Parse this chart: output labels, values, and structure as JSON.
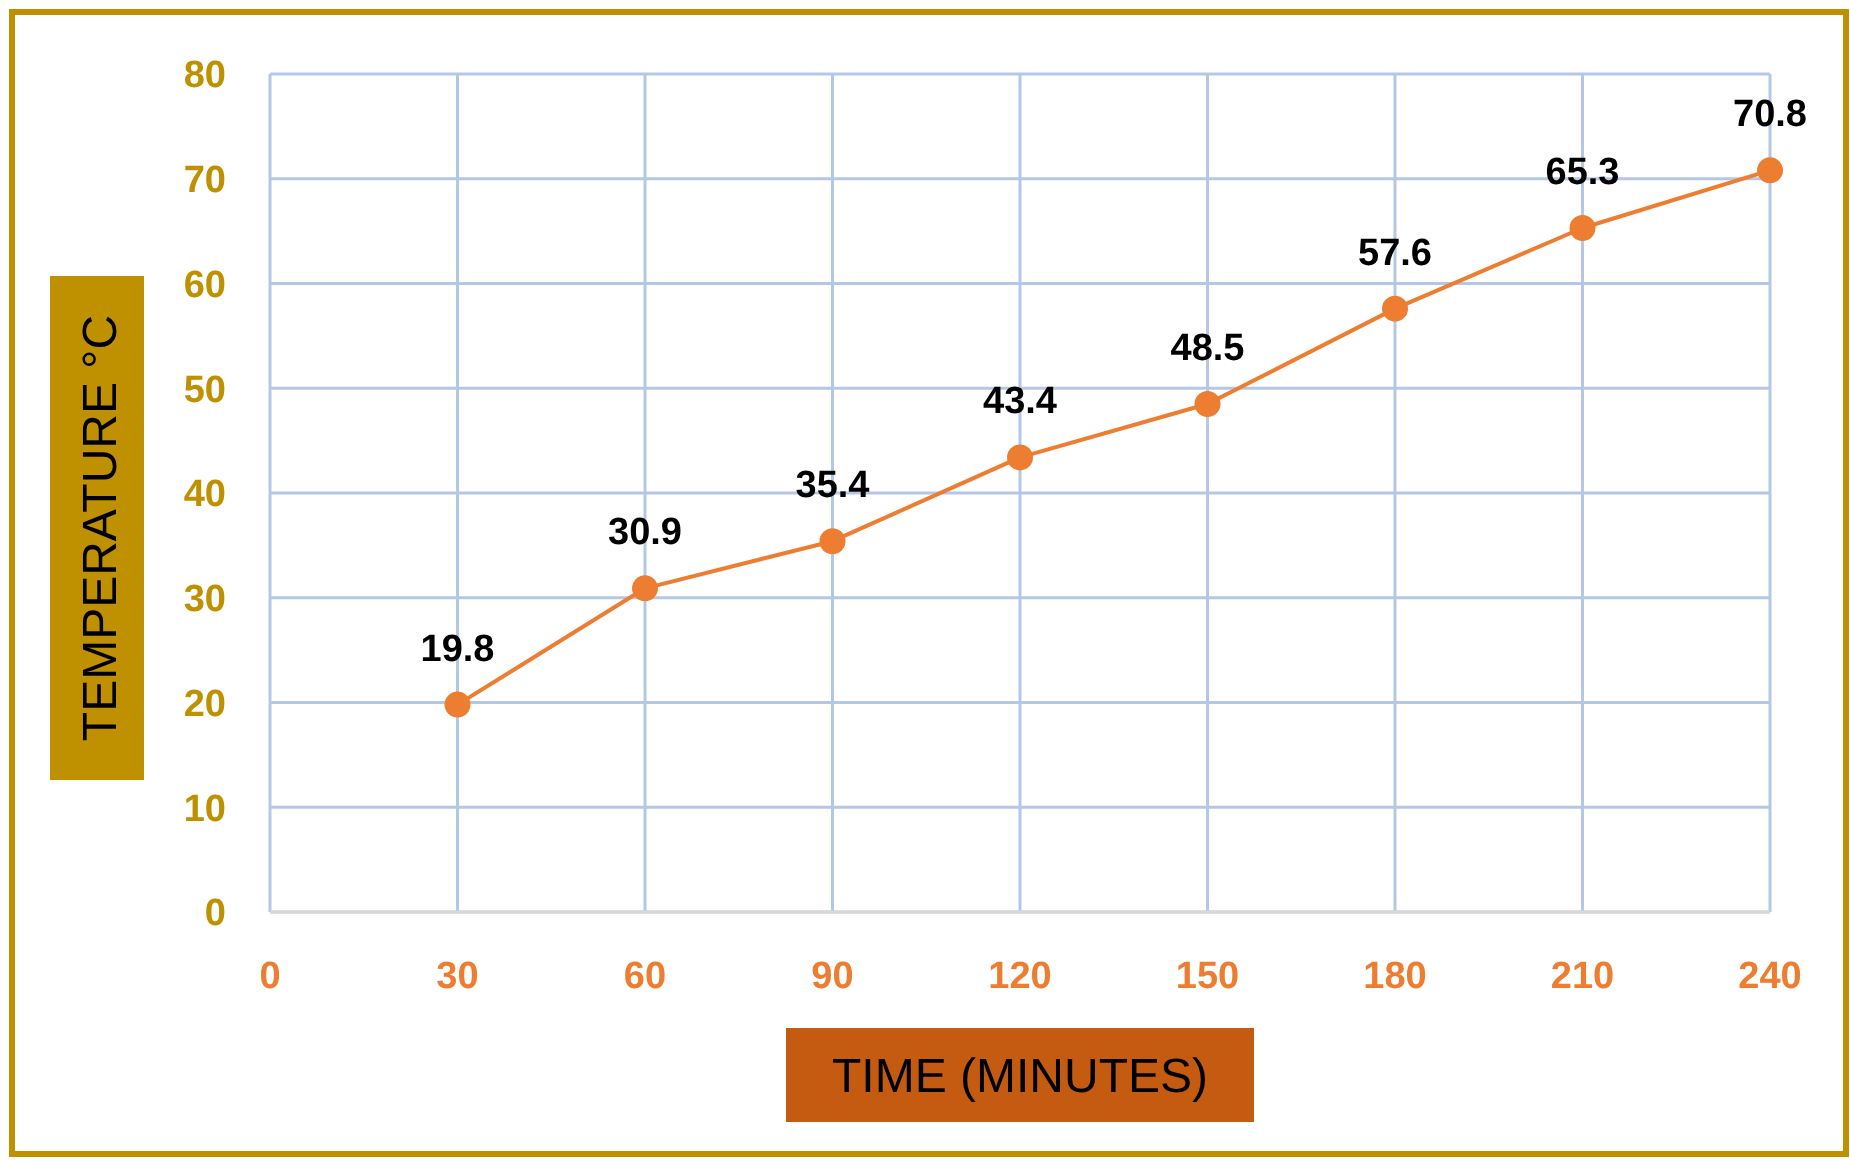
{
  "chart_data": {
    "type": "line",
    "xlabel": "TIME (MINUTES)",
    "ylabel": "TEMPERATURE °C",
    "x": [
      30,
      60,
      90,
      120,
      150,
      180,
      210,
      240
    ],
    "series": [
      {
        "color": "#ed7d31",
        "values": [
          19.8,
          30.9,
          35.4,
          43.4,
          48.5,
          57.6,
          65.3,
          70.8
        ]
      }
    ],
    "xlim": [
      0,
      240
    ],
    "xticks": [
      0,
      30,
      60,
      90,
      120,
      150,
      180,
      210,
      240
    ],
    "ylim": [
      0,
      80
    ],
    "yticks": [
      0,
      10,
      20,
      30,
      40,
      50,
      60,
      70,
      80
    ],
    "grid": true,
    "marker": "circle",
    "line_style": "solid",
    "data_labels": true
  }
}
